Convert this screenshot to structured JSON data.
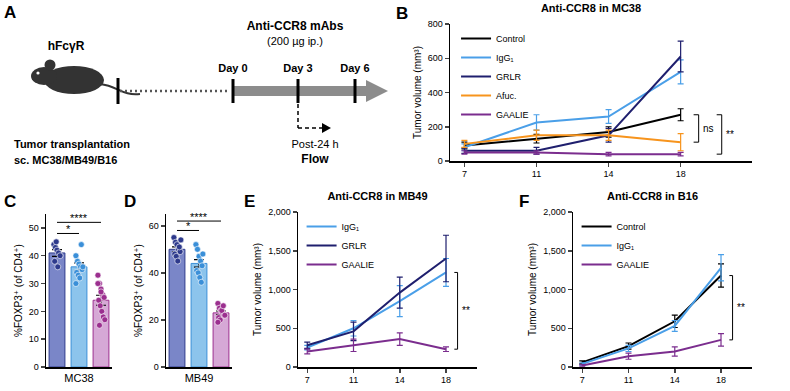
{
  "diagram": {
    "panel": "A",
    "mouse_label": "hFcγR",
    "transplant": [
      "Tumor transplantation",
      "sc. MC38/MB49/B16"
    ],
    "treatment": [
      "Anti-CCR8 mAbs",
      "(200 µg ip.)"
    ],
    "days": [
      "Day 0",
      "Day 3",
      "Day 6"
    ],
    "sampling": [
      "Post-24 h",
      "Flow"
    ]
  },
  "chart_data": [
    {
      "panel": "B",
      "type": "line",
      "title": "Anti-CCR8 in MC38",
      "y_label": "Tumor volume (mm³)",
      "categories": [
        "7",
        "11",
        "14",
        "18"
      ],
      "ylim": [
        0,
        800
      ],
      "yticks": [
        0,
        200,
        400,
        600,
        800
      ],
      "legend": "upper left",
      "series": [
        {
          "name": "Control",
          "color": "#000000",
          "values": [
            90,
            130,
            170,
            270
          ],
          "errors": [
            20,
            25,
            30,
            35
          ]
        },
        {
          "name": "IgG₁",
          "color": "#4a9fe8",
          "values": [
            80,
            225,
            260,
            520
          ],
          "errors": [
            20,
            45,
            40,
            70
          ]
        },
        {
          "name": "GRLR",
          "color": "#1f1f6e",
          "values": [
            60,
            60,
            150,
            610
          ],
          "errors": [
            15,
            20,
            40,
            90
          ]
        },
        {
          "name": "Afuc.",
          "color": "#f7941d",
          "values": [
            100,
            150,
            150,
            110
          ],
          "errors": [
            20,
            30,
            30,
            50
          ]
        },
        {
          "name": "GAALIE",
          "color": "#7b2d8e",
          "values": [
            50,
            50,
            40,
            40
          ],
          "errors": [
            10,
            10,
            10,
            10
          ]
        }
      ],
      "significance": [
        {
          "between": [
            "Control",
            "Afuc."
          ],
          "label": "ns"
        },
        {
          "between": [
            "Control",
            "GAALIE"
          ],
          "label": "**"
        }
      ]
    },
    {
      "panel": "C",
      "type": "bar",
      "y_label": "%FOXP3⁺ (of CD4⁺)",
      "x_label": "MC38",
      "categories": [
        null,
        null,
        null
      ],
      "values": [
        41,
        36,
        24
      ],
      "errors": [
        1.2,
        1.4,
        1.8
      ],
      "colors": [
        "#7a86c8",
        "#8cc4ec",
        "#d6a8d6"
      ],
      "point_colors": [
        "#2e3a8c",
        "#3a8fd8",
        "#9b2f8f"
      ],
      "points": [
        [
          44,
          43,
          42,
          41,
          40,
          38,
          45,
          36
        ],
        [
          40,
          38,
          37,
          36,
          35,
          34,
          33,
          32,
          44,
          36,
          30
        ],
        [
          33,
          30,
          28,
          26,
          25,
          24,
          22,
          20,
          18,
          17,
          30,
          15,
          27
        ]
      ],
      "ylim": [
        0,
        55
      ],
      "yticks": [
        0,
        10,
        20,
        30,
        40,
        50
      ],
      "significance": [
        {
          "between": [
            0,
            1
          ],
          "label": "*",
          "y": 48
        },
        {
          "between": [
            0,
            2
          ],
          "label": "****",
          "y": 52
        }
      ]
    },
    {
      "panel": "D",
      "type": "bar",
      "y_label": "%FOXP3⁺ (of CD4⁺)",
      "x_label": "MB49",
      "categories": [
        null,
        null,
        null
      ],
      "values": [
        50,
        44,
        23
      ],
      "errors": [
        1.0,
        1.6,
        0.8
      ],
      "colors": [
        "#7a86c8",
        "#8cc4ec",
        "#d6a8d6"
      ],
      "point_colors": [
        "#2e3a8c",
        "#3a8fd8",
        "#9b2f8f"
      ],
      "points": [
        [
          55,
          53,
          52,
          50,
          49,
          48,
          47,
          45,
          51,
          54
        ],
        [
          52,
          50,
          47,
          45,
          43,
          41,
          40,
          38,
          36,
          48
        ],
        [
          27,
          25,
          24,
          23,
          22,
          21,
          20,
          24,
          26,
          22,
          19
        ]
      ],
      "ylim": [
        0,
        65
      ],
      "yticks": [
        0,
        20,
        40,
        60
      ],
      "significance": [
        {
          "between": [
            0,
            1
          ],
          "label": "*",
          "y": 58
        },
        {
          "between": [
            0,
            2
          ],
          "label": "****",
          "y": 62
        }
      ]
    },
    {
      "panel": "E",
      "type": "line",
      "title": "Anti-CCR8 in MB49",
      "y_label": "Tumor volume (mm³)",
      "categories": [
        "7",
        "11",
        "14",
        "18"
      ],
      "ylim": [
        0,
        2000
      ],
      "yticks": [
        0,
        500,
        {
          "value": 1000,
          "label": "1,000"
        },
        {
          "value": 1500,
          "label": "1,500"
        },
        {
          "value": 2000,
          "label": "2,000"
        }
      ],
      "legend": "upper left",
      "series": [
        {
          "name": "IgG₁",
          "color": "#4a9fe8",
          "values": [
            250,
            500,
            850,
            1220
          ],
          "errors": [
            30,
            100,
            200,
            180
          ]
        },
        {
          "name": "GRLR",
          "color": "#1f1f6e",
          "values": [
            280,
            460,
            960,
            1400
          ],
          "errors": [
            40,
            120,
            200,
            300
          ]
        },
        {
          "name": "GAALIE",
          "color": "#7b2d8e",
          "values": [
            200,
            280,
            360,
            230
          ],
          "errors": [
            30,
            80,
            80,
            30
          ]
        }
      ],
      "significance": [
        {
          "between": [
            "IgG₁",
            "GAALIE"
          ],
          "label": "**"
        }
      ]
    },
    {
      "panel": "F",
      "type": "line",
      "title": "Anti-CCR8 in B16",
      "y_label": "Tumor volume (mm³)",
      "categories": [
        "7",
        "11",
        "14",
        "18"
      ],
      "ylim": [
        0,
        2000
      ],
      "yticks": [
        0,
        500,
        {
          "value": 1000,
          "label": "1,000"
        },
        {
          "value": 1500,
          "label": "1,500"
        },
        {
          "value": 2000,
          "label": "2,000"
        }
      ],
      "legend": "upper left",
      "series": [
        {
          "name": "Control",
          "color": "#000000",
          "values": [
            60,
            270,
            590,
            1180
          ],
          "errors": [
            20,
            40,
            80,
            150
          ]
        },
        {
          "name": "IgG₁",
          "color": "#4a9fe8",
          "values": [
            40,
            240,
            530,
            1280
          ],
          "errors": [
            15,
            40,
            70,
            170
          ]
        },
        {
          "name": "GAALIE",
          "color": "#7b2d8e",
          "values": [
            20,
            140,
            200,
            350
          ],
          "errors": [
            10,
            40,
            60,
            80
          ]
        }
      ],
      "significance": [
        {
          "between": [
            "Control",
            "GAALIE"
          ],
          "label": "**"
        }
      ]
    }
  ]
}
